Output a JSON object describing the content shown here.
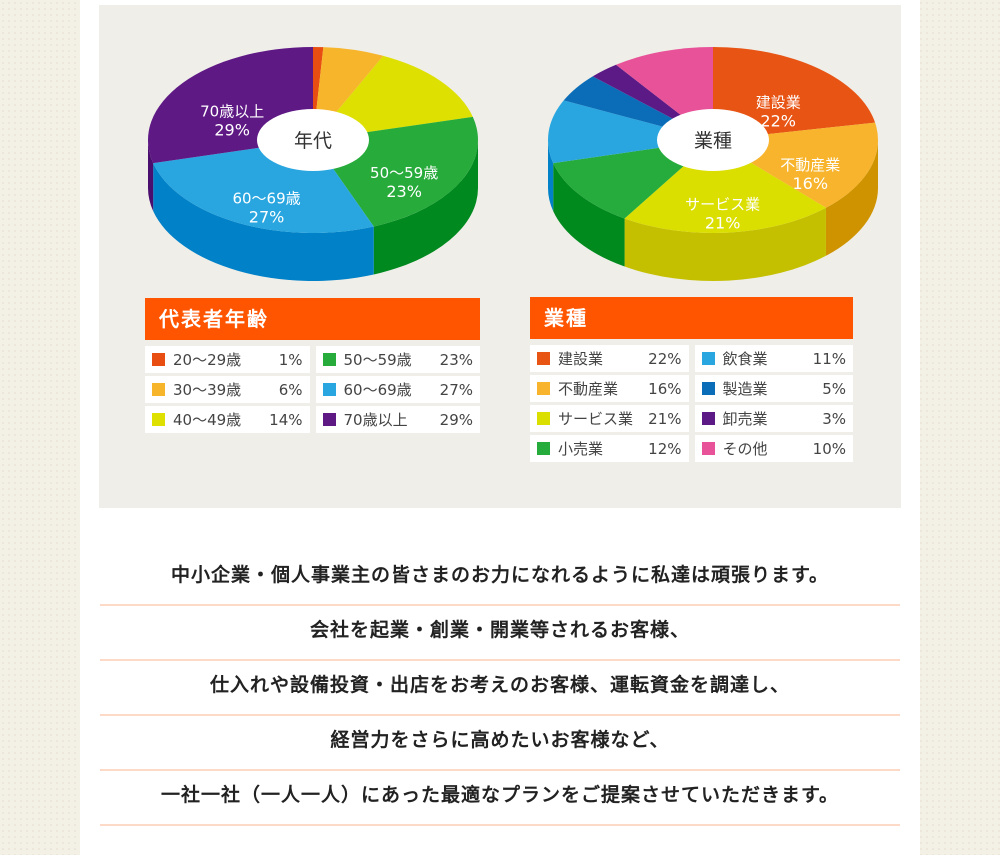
{
  "chart_data": [
    {
      "type": "pie",
      "title": "代表者年齢",
      "center_label": "年代",
      "slices": [
        {
          "label": "20〜29歳",
          "value": 1,
          "display": "1%",
          "color": "#e84e12",
          "side": "#c03c08",
          "pie_label": false
        },
        {
          "label": "30〜39歳",
          "value": 6,
          "display": "6%",
          "color": "#f7b52c",
          "side": "#d09010",
          "pie_label": false
        },
        {
          "label": "40〜49歳",
          "value": 14,
          "display": "14%",
          "color": "#dde000",
          "side": "#c4c400",
          "pie_label": false
        },
        {
          "label": "50〜59歳",
          "value": 23,
          "display": "23%",
          "color": "#27ab3b",
          "side": "#00891e",
          "pie_label": true
        },
        {
          "label": "60〜69歳",
          "value": 27,
          "display": "27%",
          "color": "#29a6e0",
          "side": "#0081c8",
          "pie_label": true
        },
        {
          "label": "70歳以上",
          "value": 29,
          "display": "29%",
          "color": "#5f1985",
          "side": "#4a0f6e",
          "pie_label": true
        }
      ]
    },
    {
      "type": "pie",
      "title": "業種",
      "center_label": "業種",
      "slices": [
        {
          "label": "建設業",
          "value": 22,
          "display": "22%",
          "color": "#e85414",
          "side": "#c53f08",
          "pie_label": true
        },
        {
          "label": "不動産業",
          "value": 16,
          "display": "16%",
          "color": "#f7b42c",
          "side": "#cf9300",
          "pie_label": true
        },
        {
          "label": "サービス業",
          "value": 21,
          "display": "21%",
          "color": "#dbdf00",
          "side": "#c4c000",
          "pie_label": true
        },
        {
          "label": "小売業",
          "value": 12,
          "display": "12%",
          "color": "#26ac3c",
          "side": "#008a1e",
          "pie_label": false
        },
        {
          "label": "飲食業",
          "value": 11,
          "display": "11%",
          "color": "#29a6e0",
          "side": "#0081c8",
          "pie_label": false
        },
        {
          "label": "製造業",
          "value": 5,
          "display": "5%",
          "color": "#0b6db7",
          "side": "#075a99",
          "pie_label": false
        },
        {
          "label": "卸売業",
          "value": 3,
          "display": "3%",
          "color": "#5c1a87",
          "side": "#48106e",
          "pie_label": false
        },
        {
          "label": "その他",
          "value": 10,
          "display": "10%",
          "color": "#e85298",
          "side": "#c23c7c",
          "pie_label": false
        }
      ]
    }
  ],
  "message_lines": [
    "中小企業・個人事業主の皆さまのお力になれるように私達は頑張ります。",
    "会社を起業・創業・開業等されるお客様、",
    "仕入れや設備投資・出店をお考えのお客様、運転資金を調達し、",
    "経営力をさらに高めたいお客様など、",
    "一社一社（一人一人）にあった最適なプランをご提案させていただきます。"
  ]
}
